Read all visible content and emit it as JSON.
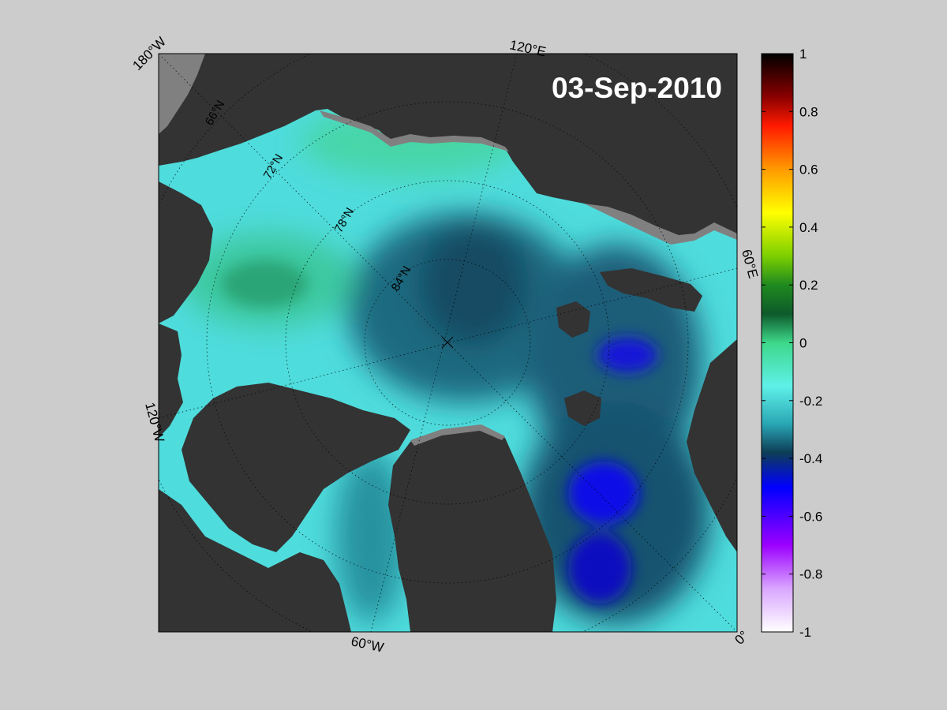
{
  "map": {
    "date_label": "03-Sep-2010",
    "longitude_labels": {
      "lon_180w": "180°W",
      "lon_120e": "120°E",
      "lon_60e": "60°E",
      "lon_0": "0°",
      "lon_60w": "60°W",
      "lon_120w": "120°W"
    },
    "latitude_labels": [
      "66°N",
      "72°N",
      "78°N",
      "84°N"
    ],
    "colors": {
      "background": "#cccccc",
      "land": "#333333",
      "nodata": "#808080",
      "ocean_base": "#4fdcdc"
    }
  },
  "colorbar": {
    "ticks": [
      "1",
      "0.8",
      "0.6",
      "0.4",
      "0.2",
      "0",
      "-0.2",
      "-0.4",
      "-0.6",
      "-0.8",
      "-1"
    ],
    "range": [
      -1,
      1
    ],
    "colormap": [
      {
        "value": 1.0,
        "color": "#000000"
      },
      {
        "value": 0.85,
        "color": "#8a0000"
      },
      {
        "value": 0.75,
        "color": "#ff1a00"
      },
      {
        "value": 0.6,
        "color": "#ff9a00"
      },
      {
        "value": 0.45,
        "color": "#ffff00"
      },
      {
        "value": 0.3,
        "color": "#7ccf00"
      },
      {
        "value": 0.2,
        "color": "#1f8a1f"
      },
      {
        "value": 0.1,
        "color": "#0d5a2a"
      },
      {
        "value": 0.0,
        "color": "#3ed88a"
      },
      {
        "value": -0.15,
        "color": "#5ff0e8"
      },
      {
        "value": -0.28,
        "color": "#2aa7b5"
      },
      {
        "value": -0.38,
        "color": "#0d3d55"
      },
      {
        "value": -0.5,
        "color": "#0000ff"
      },
      {
        "value": -0.7,
        "color": "#9b00ff"
      },
      {
        "value": -0.85,
        "color": "#d9a6ff"
      },
      {
        "value": -1.0,
        "color": "#ffffff"
      }
    ]
  }
}
